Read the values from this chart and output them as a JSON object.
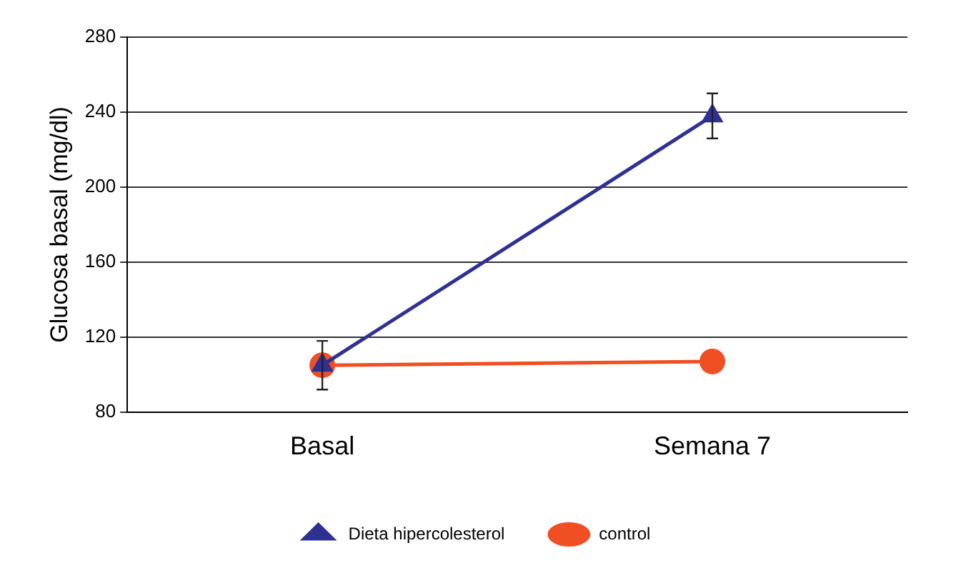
{
  "chart_data": {
    "type": "line",
    "ylabel": "Glucosa basal (mg/dl)",
    "categories": [
      "Basal",
      "Semana 7"
    ],
    "series": [
      {
        "name": "Dieta hipercolesterol",
        "color": "#2e3192",
        "values": [
          105,
          238
        ],
        "errors": [
          13,
          12
        ],
        "marker": "triangle"
      },
      {
        "name": "control",
        "color": "#f04e23",
        "values": [
          105,
          107
        ],
        "marker": "circle"
      }
    ],
    "ylim": [
      80,
      280
    ],
    "yticks": [
      80,
      120,
      160,
      200,
      240,
      280
    ],
    "grid": "y",
    "legend": "bottom",
    "line_style": "solid"
  }
}
